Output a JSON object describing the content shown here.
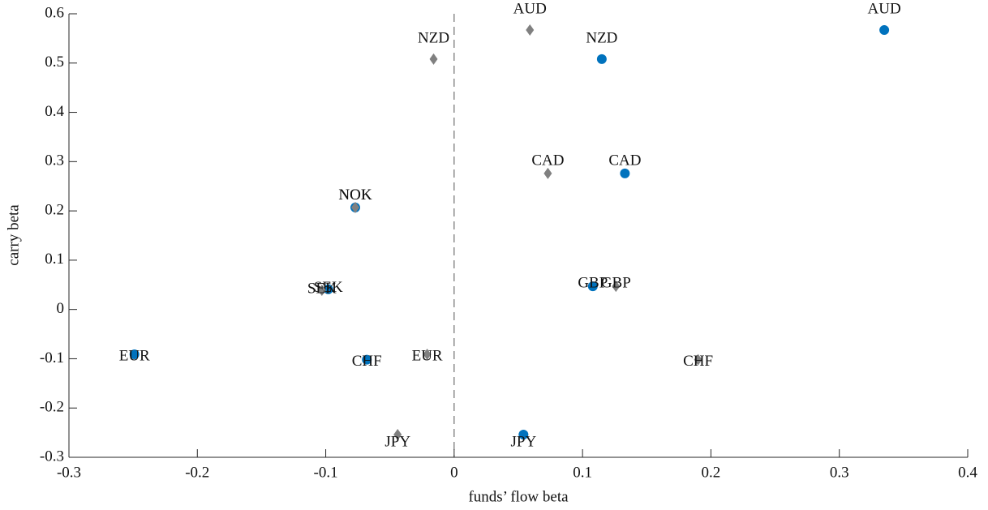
{
  "chart_data": {
    "type": "scatter",
    "x_label": "funds’ flow beta",
    "y_label": "carry beta",
    "xlim": [
      -0.3,
      0.4
    ],
    "ylim": [
      -0.3,
      0.6
    ],
    "xticks": [
      -0.3,
      -0.2,
      -0.1,
      0,
      0.1,
      0.2,
      0.3,
      0.4
    ],
    "yticks": [
      -0.3,
      -0.2,
      -0.1,
      0,
      0.1,
      0.2,
      0.3,
      0.4,
      0.5,
      0.6
    ],
    "series": [
      {
        "color": "#0072bd",
        "marker": "circle",
        "labels": [
          "AUD",
          "NZD",
          "CAD",
          "NOK",
          "SEK",
          "GBP",
          "EUR",
          "CHF",
          "JPY"
        ],
        "x": [
          0.335,
          0.115,
          0.133,
          -0.077,
          -0.098,
          0.108,
          -0.249,
          -0.068,
          0.054
        ],
        "values": [
          0.567,
          0.508,
          0.276,
          0.207,
          0.041,
          0.047,
          -0.091,
          -0.102,
          -0.254
        ]
      },
      {
        "color": "#808080",
        "marker": "diamond",
        "labels": [
          "AUD",
          "NZD",
          "CAD",
          "NOK",
          "SEK",
          "GBP",
          "EUR",
          "CHF",
          "JPY"
        ],
        "x": [
          0.059,
          -0.016,
          0.073,
          -0.077,
          -0.103,
          0.126,
          -0.021,
          0.19,
          -0.044
        ],
        "values": [
          0.567,
          0.508,
          0.276,
          0.207,
          0.039,
          0.047,
          -0.091,
          -0.102,
          -0.254
        ]
      }
    ]
  }
}
